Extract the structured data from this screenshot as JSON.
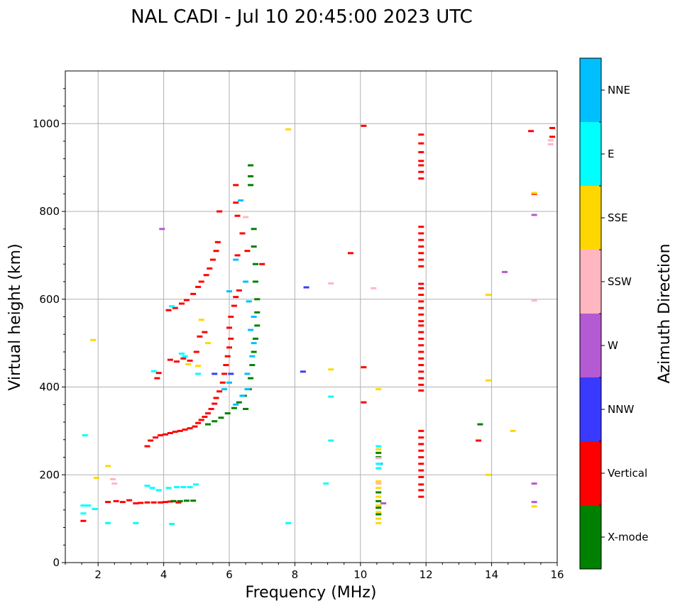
{
  "chart_data": {
    "type": "scatter",
    "title": "NAL CADI - Jul 10 20:45:00 2023 UTC",
    "xlabel": "Frequency (MHz)",
    "ylabel": "Virtual height (km)",
    "xlim": [
      1,
      16
    ],
    "ylim": [
      0,
      1120
    ],
    "xticks": [
      2,
      4,
      6,
      8,
      10,
      12,
      14,
      16
    ],
    "yticks": [
      0,
      200,
      400,
      600,
      800,
      1000
    ],
    "grid": true,
    "colorbar": {
      "label": "Azimuth Direction",
      "categories": [
        {
          "name": "X-mode",
          "color": "#008000"
        },
        {
          "name": "Vertical",
          "color": "#ff0000"
        },
        {
          "name": "NNW",
          "color": "#3a3aff"
        },
        {
          "name": "W",
          "color": "#b45ad2"
        },
        {
          "name": "SSW",
          "color": "#ffb6c1"
        },
        {
          "name": "SSE",
          "color": "#ffd700"
        },
        {
          "name": "E",
          "color": "#00ffff"
        },
        {
          "name": "NNE",
          "color": "#00bfff"
        }
      ]
    },
    "series": [
      {
        "name": "Vertical",
        "points": [
          [
            1.55,
            95
          ],
          [
            2.3,
            138
          ],
          [
            2.55,
            140
          ],
          [
            2.75,
            138
          ],
          [
            2.95,
            142
          ],
          [
            3.15,
            135
          ],
          [
            3.3,
            136
          ],
          [
            3.5,
            137
          ],
          [
            3.7,
            137
          ],
          [
            3.9,
            137
          ],
          [
            4.05,
            138
          ],
          [
            4.2,
            139
          ],
          [
            4.3,
            140
          ],
          [
            4.45,
            137
          ],
          [
            3.5,
            265
          ],
          [
            3.6,
            278
          ],
          [
            3.75,
            285
          ],
          [
            3.9,
            290
          ],
          [
            4.05,
            292
          ],
          [
            4.2,
            295
          ],
          [
            4.35,
            298
          ],
          [
            4.5,
            300
          ],
          [
            4.65,
            303
          ],
          [
            4.8,
            306
          ],
          [
            4.95,
            310
          ],
          [
            5.05,
            318
          ],
          [
            5.15,
            325
          ],
          [
            5.25,
            332
          ],
          [
            5.35,
            340
          ],
          [
            5.45,
            350
          ],
          [
            5.55,
            362
          ],
          [
            5.6,
            375
          ],
          [
            5.7,
            390
          ],
          [
            5.8,
            410
          ],
          [
            5.85,
            430
          ],
          [
            5.9,
            450
          ],
          [
            5.95,
            470
          ],
          [
            6.0,
            490
          ],
          [
            6.05,
            510
          ],
          [
            6.0,
            535
          ],
          [
            6.05,
            560
          ],
          [
            6.15,
            585
          ],
          [
            6.2,
            605
          ],
          [
            6.3,
            620
          ],
          [
            5.0,
            480
          ],
          [
            4.8,
            460
          ],
          [
            4.6,
            465
          ],
          [
            4.4,
            458
          ],
          [
            4.2,
            462
          ],
          [
            3.8,
            420
          ],
          [
            3.85,
            432
          ],
          [
            5.1,
            515
          ],
          [
            5.25,
            525
          ],
          [
            4.15,
            575
          ],
          [
            4.35,
            580
          ],
          [
            4.55,
            590
          ],
          [
            4.7,
            598
          ],
          [
            4.9,
            612
          ],
          [
            5.05,
            628
          ],
          [
            5.15,
            640
          ],
          [
            5.3,
            655
          ],
          [
            5.4,
            670
          ],
          [
            5.5,
            690
          ],
          [
            5.6,
            710
          ],
          [
            5.65,
            730
          ],
          [
            5.7,
            800
          ],
          [
            6.2,
            820
          ],
          [
            6.2,
            860
          ],
          [
            6.4,
            750
          ],
          [
            6.55,
            710
          ],
          [
            6.25,
            700
          ],
          [
            6.25,
            790
          ],
          [
            7.0,
            680
          ],
          [
            9.7,
            705
          ],
          [
            10.1,
            445
          ],
          [
            10.1,
            365
          ],
          [
            10.1,
            995
          ],
          [
            11.85,
            975
          ],
          [
            11.85,
            955
          ],
          [
            11.85,
            935
          ],
          [
            11.85,
            915
          ],
          [
            11.85,
            905
          ],
          [
            11.85,
            890
          ],
          [
            11.85,
            875
          ],
          [
            11.85,
            765
          ],
          [
            11.85,
            750
          ],
          [
            11.85,
            735
          ],
          [
            11.85,
            720
          ],
          [
            11.85,
            705
          ],
          [
            11.85,
            690
          ],
          [
            11.85,
            675
          ],
          [
            11.85,
            635
          ],
          [
            11.85,
            625
          ],
          [
            11.85,
            610
          ],
          [
            11.85,
            595
          ],
          [
            11.85,
            580
          ],
          [
            11.85,
            565
          ],
          [
            11.85,
            550
          ],
          [
            11.85,
            540
          ],
          [
            11.85,
            525
          ],
          [
            11.85,
            510
          ],
          [
            11.85,
            495
          ],
          [
            11.85,
            480
          ],
          [
            11.85,
            465
          ],
          [
            11.85,
            450
          ],
          [
            11.85,
            435
          ],
          [
            11.85,
            420
          ],
          [
            11.85,
            405
          ],
          [
            11.85,
            392
          ],
          [
            11.85,
            300
          ],
          [
            11.85,
            285
          ],
          [
            11.85,
            270
          ],
          [
            11.85,
            255
          ],
          [
            11.85,
            240
          ],
          [
            11.85,
            225
          ],
          [
            11.85,
            210
          ],
          [
            11.85,
            195
          ],
          [
            11.85,
            178
          ],
          [
            11.85,
            165
          ],
          [
            11.85,
            150
          ],
          [
            13.6,
            278
          ],
          [
            15.2,
            983
          ],
          [
            15.85,
            990
          ],
          [
            15.85,
            970
          ],
          [
            15.3,
            840
          ]
        ]
      },
      {
        "name": "X-mode",
        "points": [
          [
            4.3,
            140
          ],
          [
            4.5,
            140
          ],
          [
            4.7,
            141
          ],
          [
            4.9,
            141
          ],
          [
            5.35,
            315
          ],
          [
            5.55,
            322
          ],
          [
            5.75,
            330
          ],
          [
            5.95,
            340
          ],
          [
            6.15,
            352
          ],
          [
            6.3,
            365
          ],
          [
            6.45,
            380
          ],
          [
            6.6,
            395
          ],
          [
            6.65,
            420
          ],
          [
            6.7,
            450
          ],
          [
            6.75,
            480
          ],
          [
            6.8,
            510
          ],
          [
            6.85,
            540
          ],
          [
            6.85,
            570
          ],
          [
            6.85,
            600
          ],
          [
            6.8,
            640
          ],
          [
            6.8,
            680
          ],
          [
            6.75,
            720
          ],
          [
            6.75,
            760
          ],
          [
            6.65,
            860
          ],
          [
            6.65,
            880
          ],
          [
            6.65,
            905
          ],
          [
            6.5,
            350
          ],
          [
            10.55,
            160
          ],
          [
            10.55,
            140
          ],
          [
            10.55,
            125
          ],
          [
            10.55,
            110
          ],
          [
            10.55,
            240
          ],
          [
            10.55,
            250
          ],
          [
            13.65,
            315
          ]
        ]
      },
      {
        "name": "NNE",
        "points": [
          [
            5.85,
            395
          ],
          [
            6.0,
            410
          ],
          [
            6.2,
            360
          ],
          [
            6.4,
            380
          ],
          [
            6.55,
            395
          ],
          [
            6.55,
            430
          ],
          [
            6.7,
            470
          ],
          [
            6.75,
            500
          ],
          [
            6.65,
            530
          ],
          [
            6.75,
            560
          ],
          [
            6.6,
            595
          ],
          [
            6.5,
            640
          ],
          [
            6.0,
            618
          ],
          [
            6.2,
            690
          ],
          [
            6.35,
            825
          ],
          [
            10.6,
            225
          ]
        ]
      },
      {
        "name": "E",
        "points": [
          [
            1.55,
            130
          ],
          [
            1.55,
            112
          ],
          [
            1.7,
            130
          ],
          [
            1.9,
            122
          ],
          [
            2.3,
            90
          ],
          [
            3.15,
            90
          ],
          [
            3.5,
            175
          ],
          [
            3.65,
            170
          ],
          [
            3.85,
            165
          ],
          [
            4.15,
            170
          ],
          [
            4.4,
            172
          ],
          [
            4.6,
            172
          ],
          [
            4.8,
            172
          ],
          [
            4.98,
            178
          ],
          [
            4.25,
            88
          ],
          [
            4.25,
            584
          ],
          [
            4.55,
            476
          ],
          [
            4.65,
            470
          ],
          [
            3.7,
            436
          ],
          [
            9.1,
            378
          ],
          [
            9.1,
            278
          ],
          [
            8.95,
            180
          ],
          [
            7.8,
            90
          ],
          [
            10.55,
            215
          ],
          [
            10.55,
            265
          ],
          [
            10.55,
            225
          ],
          [
            1.6,
            290
          ],
          [
            5.05,
            430
          ]
        ]
      },
      {
        "name": "SSE",
        "points": [
          [
            1.85,
            507
          ],
          [
            1.95,
            193
          ],
          [
            2.3,
            220
          ],
          [
            4.75,
            452
          ],
          [
            5.05,
            448
          ],
          [
            5.15,
            553
          ],
          [
            5.35,
            500
          ],
          [
            7.8,
            987
          ],
          [
            9.1,
            440
          ],
          [
            10.55,
            395
          ],
          [
            10.55,
            258
          ],
          [
            10.55,
            185
          ],
          [
            10.55,
            170
          ],
          [
            10.55,
            150
          ],
          [
            10.55,
            130
          ],
          [
            10.55,
            115
          ],
          [
            10.55,
            100
          ],
          [
            10.55,
            90
          ],
          [
            13.9,
            610
          ],
          [
            13.9,
            415
          ],
          [
            13.9,
            200
          ],
          [
            14.65,
            300
          ],
          [
            15.3,
            128
          ],
          [
            15.3,
            842
          ]
        ]
      },
      {
        "name": "SSW",
        "points": [
          [
            2.45,
            190
          ],
          [
            2.5,
            180
          ],
          [
            9.1,
            636
          ],
          [
            10.4,
            625
          ],
          [
            10.55,
            180
          ],
          [
            10.55,
            238
          ],
          [
            15.3,
            597
          ],
          [
            15.8,
            962
          ],
          [
            15.8,
            953
          ],
          [
            6.5,
            787
          ]
        ]
      },
      {
        "name": "W",
        "points": [
          [
            3.95,
            760
          ],
          [
            10.7,
            135
          ],
          [
            14.4,
            662
          ],
          [
            15.3,
            792
          ],
          [
            15.3,
            180
          ],
          [
            15.3,
            138
          ]
        ]
      },
      {
        "name": "NNW",
        "points": [
          [
            8.35,
            627
          ],
          [
            8.25,
            435
          ],
          [
            5.55,
            430
          ],
          [
            6.05,
            430
          ]
        ]
      }
    ]
  }
}
